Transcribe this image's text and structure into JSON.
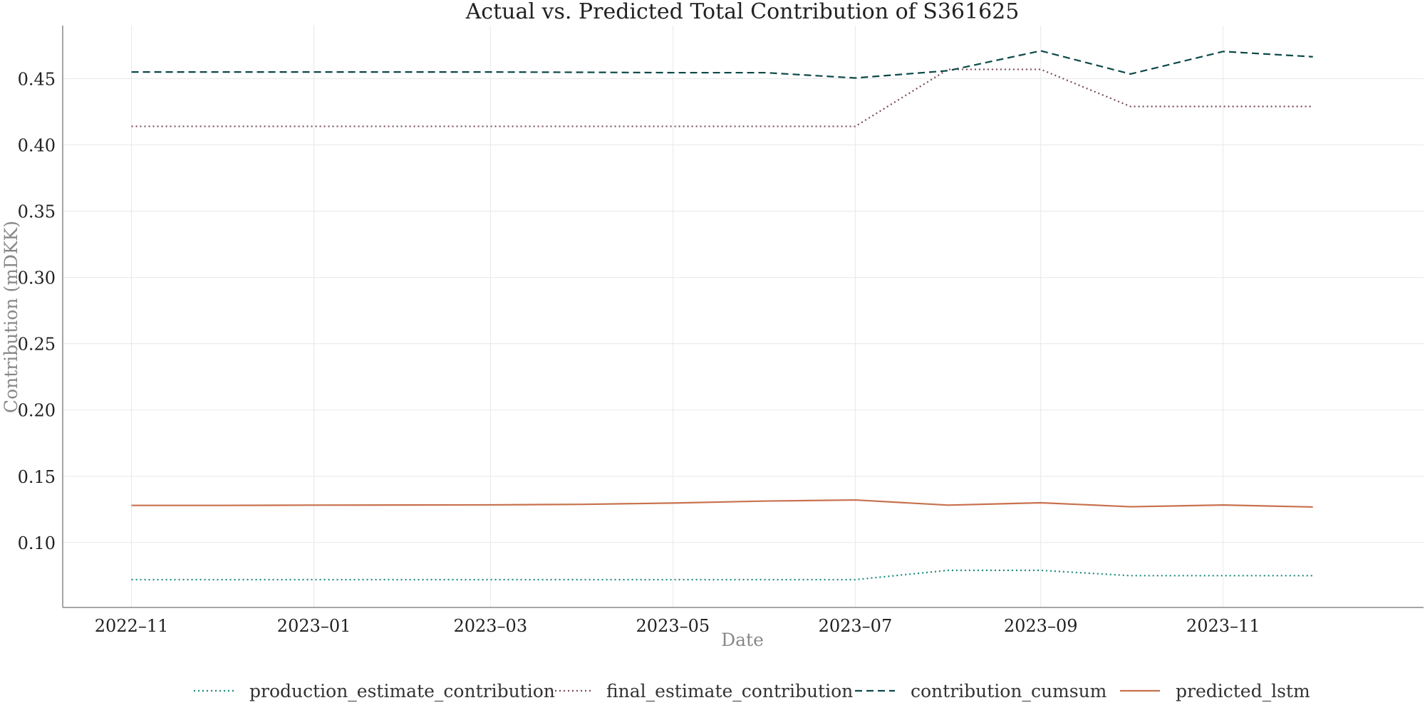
{
  "chart_data": {
    "type": "line",
    "title": "Actual vs. Predicted Total Contribution of S361625",
    "xlabel": "Date",
    "ylabel": "Contribution (mDKK)",
    "x": [
      "2022-11",
      "2022-12",
      "2023-01",
      "2023-02",
      "2023-03",
      "2023-04",
      "2023-05",
      "2023-06",
      "2023-07",
      "2023-08",
      "2023-09",
      "2023-10",
      "2023-11",
      "2023-12"
    ],
    "xticks": [
      "2022–11",
      "2023–01",
      "2023–03",
      "2023–05",
      "2023–07",
      "2023–09",
      "2023–11"
    ],
    "xtick_dates": [
      "2022-11",
      "2023-01",
      "2023-03",
      "2023-05",
      "2023-07",
      "2023-09",
      "2023-11"
    ],
    "xlim": [
      "2022-10-09",
      "2024-01-07"
    ],
    "ylim": [
      0.051,
      0.49
    ],
    "yticks": [
      0.1,
      0.15,
      0.2,
      0.25,
      0.3,
      0.35,
      0.4,
      0.45
    ],
    "ytick_labels": [
      "0.10",
      "0.15",
      "0.20",
      "0.25",
      "0.30",
      "0.35",
      "0.40",
      "0.45"
    ],
    "grid": true,
    "legend_position": "bottom-center",
    "series": [
      {
        "name": "production_estimate_contribution",
        "color": "#1b8a7a",
        "style": "dotted",
        "values": [
          0.072,
          0.072,
          0.072,
          0.072,
          0.072,
          0.072,
          0.072,
          0.072,
          0.072,
          0.079,
          0.079,
          0.075,
          0.075,
          0.075
        ]
      },
      {
        "name": "final_estimate_contribution",
        "color": "#7a4a5a",
        "style": "dotted",
        "values": [
          0.414,
          0.414,
          0.414,
          0.414,
          0.414,
          0.414,
          0.414,
          0.414,
          0.414,
          0.457,
          0.457,
          0.429,
          0.429,
          0.429
        ]
      },
      {
        "name": "contribution_cumsum",
        "color": "#0c4848",
        "style": "dashed",
        "values": [
          0.455,
          0.455,
          0.455,
          0.455,
          0.455,
          0.4548,
          0.4545,
          0.4545,
          0.4505,
          0.456,
          0.471,
          0.4535,
          0.4705,
          0.4665
        ]
      },
      {
        "name": "predicted_lstm",
        "color": "#c8714e",
        "style": "solid",
        "values": [
          0.128,
          0.128,
          0.1282,
          0.1283,
          0.1284,
          0.1288,
          0.1298,
          0.1313,
          0.1321,
          0.1282,
          0.13,
          0.127,
          0.1283,
          0.1268
        ]
      }
    ]
  }
}
